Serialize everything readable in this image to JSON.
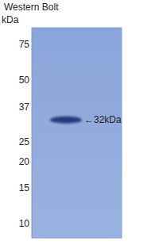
{
  "chart_data": {
    "type": "western_blot",
    "title": "Western Bolt",
    "y_label": "kDa",
    "values": [
      32
    ],
    "value_labels": [
      "←32kDa"
    ],
    "data_labels": true,
    "color": "#27397a",
    "log": "y",
    "ylim": [
      8.5,
      90
    ],
    "yticks": [
      75,
      50,
      37,
      25,
      20,
      15,
      10
    ]
  }
}
